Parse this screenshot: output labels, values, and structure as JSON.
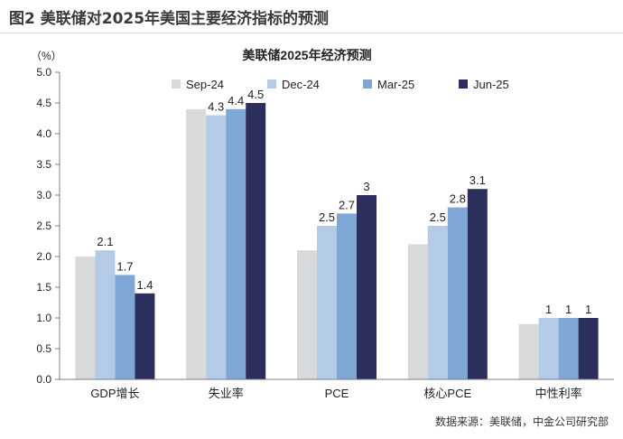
{
  "figure_title": "图2 美联储对2025年美国主要经济指标的预测",
  "source": "数据来源：美联储，中金公司研究部",
  "chart_data": {
    "type": "bar",
    "title": "美联储2025年经济预测",
    "ylabel": "（%）",
    "xlabel": "",
    "ylim": [
      0,
      5.0
    ],
    "ytick_step": 0.5,
    "yticks": [
      "0.0",
      "0.5",
      "1.0",
      "1.5",
      "2.0",
      "2.5",
      "3.0",
      "3.5",
      "4.0",
      "4.5",
      "5.0"
    ],
    "categories": [
      "GDP增长",
      "失业率",
      "PCE",
      "核心PCE",
      "中性利率"
    ],
    "series": [
      {
        "name": "Sep-24",
        "color": "#d8d9db",
        "values": [
          2.0,
          4.4,
          2.1,
          2.2,
          0.9
        ],
        "labels": [
          "",
          "",
          "",
          "",
          ""
        ]
      },
      {
        "name": "Dec-24",
        "color": "#b3cbe6",
        "values": [
          2.1,
          4.3,
          2.5,
          2.5,
          1.0
        ],
        "labels": [
          "2.1",
          "4.3",
          "2.5",
          "2.5",
          "1"
        ]
      },
      {
        "name": "Mar-25",
        "color": "#7fa7d6",
        "values": [
          1.7,
          4.4,
          2.7,
          2.8,
          1.0
        ],
        "labels": [
          "1.7",
          "4.4",
          "2.7",
          "2.8",
          "1"
        ]
      },
      {
        "name": "Jun-25",
        "color": "#2c2f5e",
        "values": [
          1.4,
          4.5,
          3.0,
          3.1,
          1.0
        ],
        "labels": [
          "1.4",
          "4.5",
          "3",
          "3.1",
          "1"
        ]
      }
    ],
    "legend_position": "top",
    "grid": false
  }
}
